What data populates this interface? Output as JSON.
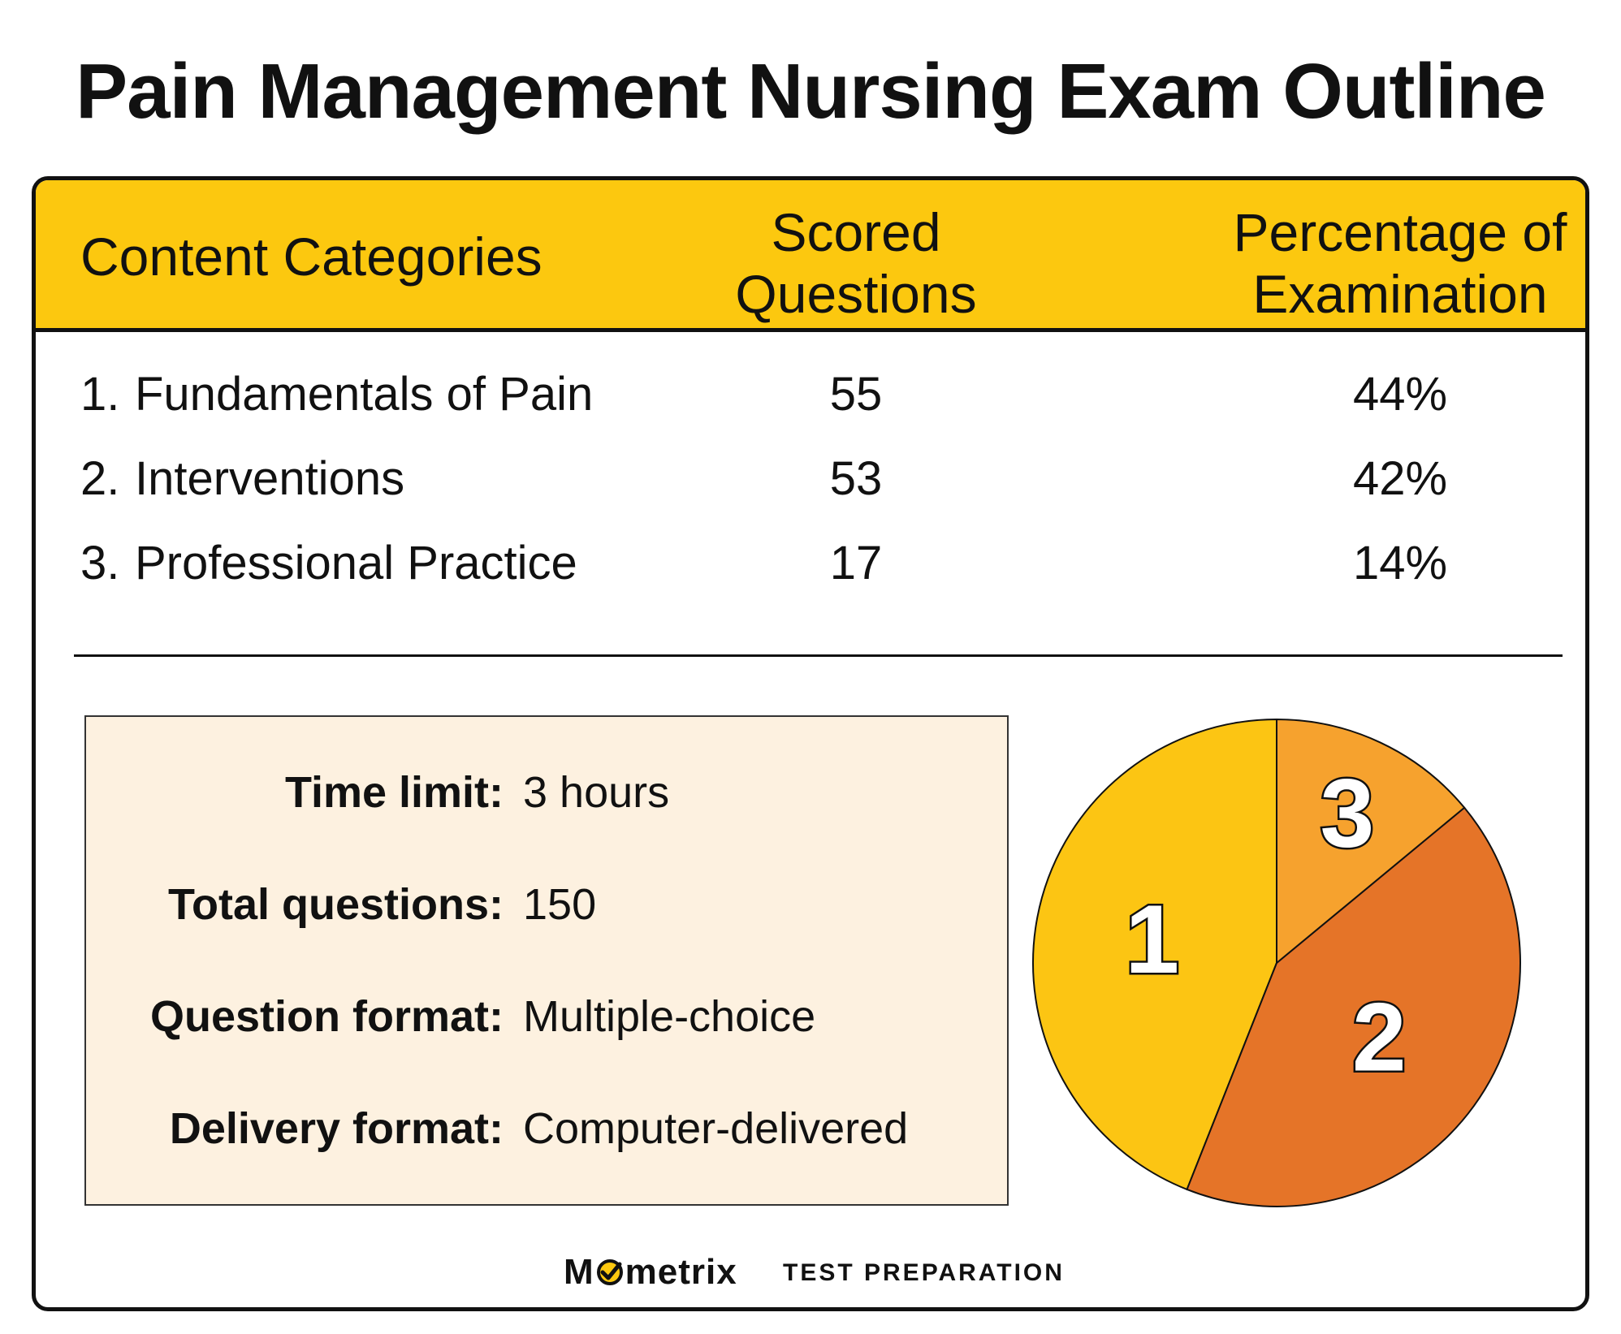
{
  "title": "Pain Management Nursing Exam Outline",
  "colors": {
    "header_bg": "#FCC80F",
    "info_bg": "#FDF1E0",
    "slice1": "#FCC513",
    "slice2": "#E57428",
    "slice3": "#F6A22E"
  },
  "table": {
    "headers": {
      "category": "Content Categories",
      "scored_line1": "Scored",
      "scored_line2": "Questions",
      "pct_line1": "Percentage of",
      "pct_line2": "Examination"
    },
    "rows": [
      {
        "num": "1.",
        "name": "Fundamentals of Pain",
        "questions": "55",
        "percent": "44%"
      },
      {
        "num": "2.",
        "name": "Interventions",
        "questions": "53",
        "percent": "42%"
      },
      {
        "num": "3.",
        "name": "Professional Practice",
        "questions": "17",
        "percent": "14%"
      }
    ]
  },
  "info": {
    "time_limit_label": "Time limit:",
    "time_limit_value": "3 hours",
    "total_questions_label": "Total questions:",
    "total_questions_value": "150",
    "question_format_label": "Question format:",
    "question_format_value": "Multiple-choice",
    "delivery_format_label": "Delivery format:",
    "delivery_format_value": "Computer-delivered"
  },
  "chart_data": {
    "type": "pie",
    "categories": [
      "1",
      "2",
      "3"
    ],
    "values": [
      44,
      42,
      14
    ],
    "title": "",
    "start": "top",
    "direction": "counterclockwise"
  },
  "brand": {
    "word": "Mometrix",
    "tagline": "TEST PREPARATION"
  }
}
